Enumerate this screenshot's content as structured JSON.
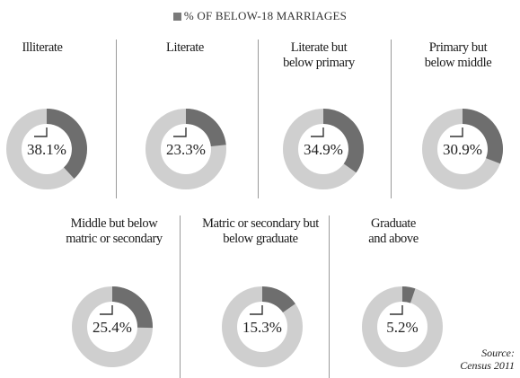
{
  "legend": {
    "label": "% OF BELOW-18 MARRIAGES"
  },
  "chart_data": {
    "type": "pie",
    "series_name": "% OF BELOW-18 MARRIAGES",
    "colors": {
      "share": "#6e6e6e",
      "rest": "#cfcfcf"
    },
    "categories": [
      "Illiterate",
      "Literate",
      "Literate but below primary",
      "Primary but below middle",
      "Middle but below matric or secondary",
      "Matric or secondary but below graduate",
      "Graduate and above"
    ],
    "values": [
      38.1,
      23.3,
      34.9,
      30.9,
      25.4,
      15.3,
      5.2
    ],
    "value_labels": [
      "38.1%",
      "23.3%",
      "34.9%",
      "30.9%",
      "25.4%",
      "15.3%",
      "5.2%"
    ],
    "display_labels": [
      "Illiterate",
      "Literate",
      "Literate but\nbelow primary",
      "Primary but\nbelow middle",
      "Middle but below\nmatric or secondary",
      "Matric or secondary but\nbelow graduate",
      "Graduate\nand above"
    ]
  },
  "source": "Source:\nCensus 2011"
}
